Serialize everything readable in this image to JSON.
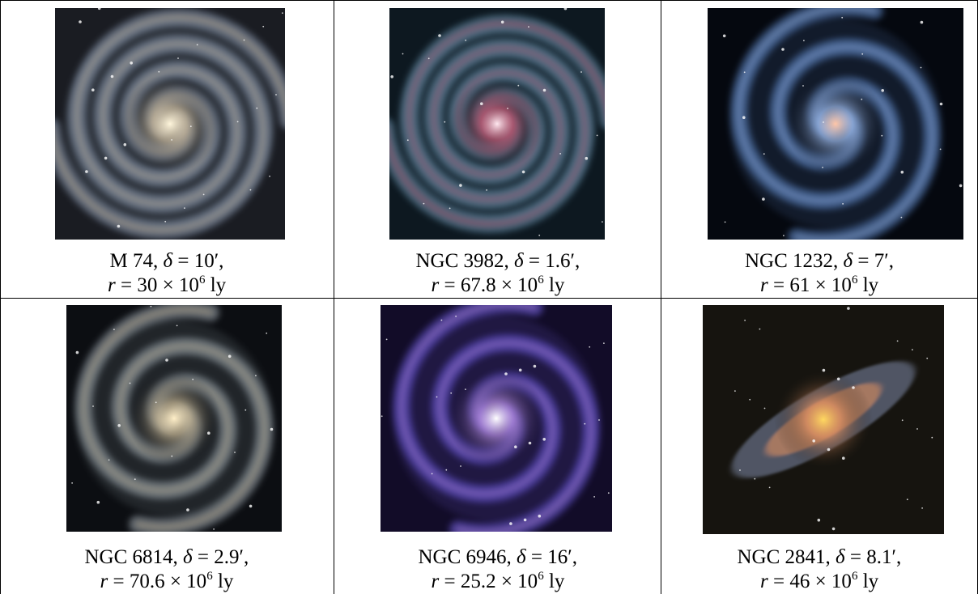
{
  "table": {
    "rows": [
      [
        {
          "name": "M 74,",
          "delta_symbol": "δ",
          "delta_value": "= 10′,",
          "r_symbol": "r",
          "r_value": "= 30 × 10",
          "r_exponent": "6",
          "r_unit": "ly"
        },
        {
          "name": "NGC 3982,",
          "delta_symbol": "δ",
          "delta_value": "= 1.6′,",
          "r_symbol": "r",
          "r_value": "= 67.8 × 10",
          "r_exponent": "6",
          "r_unit": "ly"
        },
        {
          "name": "NGC 1232,",
          "delta_symbol": "δ",
          "delta_value": "= 7′,",
          "r_symbol": "r",
          "r_value": "= 61 × 10",
          "r_exponent": "6",
          "r_unit": "ly"
        }
      ],
      [
        {
          "name": "NGC 6814,",
          "delta_symbol": "δ",
          "delta_value": "= 2.9′,",
          "r_symbol": "r",
          "r_value": "= 70.6 × 10",
          "r_exponent": "6",
          "r_unit": "ly"
        },
        {
          "name": "NGC 6946,",
          "delta_symbol": "δ",
          "delta_value": "= 16′,",
          "r_symbol": "r",
          "r_value": "= 25.2 × 10",
          "r_exponent": "6",
          "r_unit": "ly"
        },
        {
          "name": "NGC 2841,",
          "delta_symbol": "δ",
          "delta_value": "= 8.1′,",
          "r_symbol": "r",
          "r_value": "= 46 × 10",
          "r_exponent": "6",
          "r_unit": "ly"
        }
      ]
    ]
  }
}
